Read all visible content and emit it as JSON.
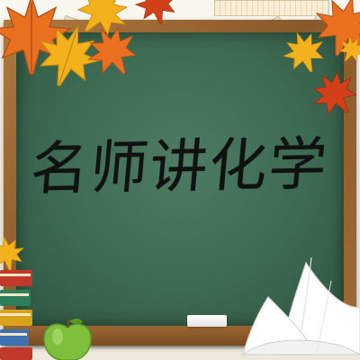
{
  "board": {
    "title": "名师讲化学"
  },
  "colors": {
    "board_green": "#3d6a52",
    "frame_wood": "#8a5a2b",
    "title_ink": "#111111",
    "leaf_orange": "#e9701f",
    "leaf_yellow": "#f3b21b",
    "leaf_red": "#d2401a",
    "apple_green": "#7fbf3b"
  },
  "decorations": {
    "leaf_icon": "maple-leaf-icon",
    "apple_icon": "apple-icon",
    "books_icon": "book-stack-icon",
    "open_book_icon": "open-book-icon",
    "chalk_icon": "chalk-icon"
  }
}
